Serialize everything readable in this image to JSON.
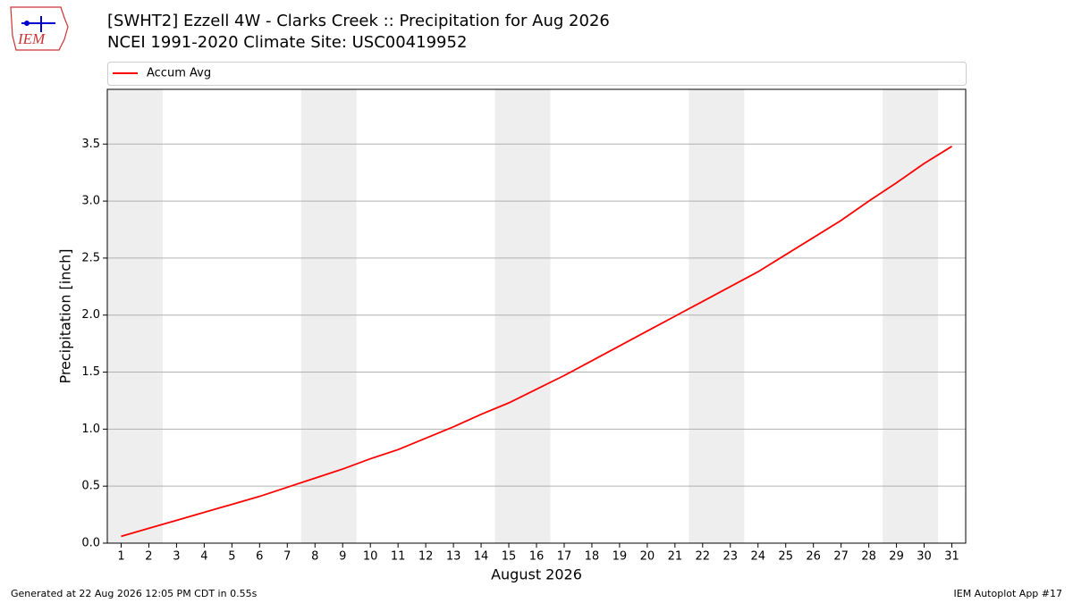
{
  "logo_text": "IEM",
  "footer": {
    "left": "Generated at 22 Aug 2026 12:05 PM CDT in 0.55s",
    "right": "IEM Autoplot App #17"
  },
  "chart_data": {
    "type": "line",
    "title": "[SWHT2] Ezzell 4W - Clarks Creek :: Precipitation for Aug 2026",
    "subtitle": "NCEI 1991-2020 Climate Site: USC00419952",
    "x_label": "August 2026",
    "y_label": "Precipitation [inch]",
    "x": [
      1,
      2,
      3,
      4,
      5,
      6,
      7,
      8,
      9,
      10,
      11,
      12,
      13,
      14,
      15,
      16,
      17,
      18,
      19,
      20,
      21,
      22,
      23,
      24,
      25,
      26,
      27,
      28,
      29,
      30,
      31
    ],
    "series": [
      {
        "name": "Accum Avg",
        "color": "#ff0000",
        "values": [
          0.06,
          0.13,
          0.2,
          0.27,
          0.34,
          0.41,
          0.49,
          0.57,
          0.65,
          0.74,
          0.82,
          0.92,
          1.02,
          1.13,
          1.23,
          1.35,
          1.47,
          1.6,
          1.73,
          1.86,
          1.99,
          2.12,
          2.25,
          2.38,
          2.53,
          2.68,
          2.83,
          3.0,
          3.16,
          3.33,
          3.48
        ]
      }
    ],
    "xlim": [
      0.5,
      31.5
    ],
    "xticks": [
      1,
      2,
      3,
      4,
      5,
      6,
      7,
      8,
      9,
      10,
      11,
      12,
      13,
      14,
      15,
      16,
      17,
      18,
      19,
      20,
      21,
      22,
      23,
      24,
      25,
      26,
      27,
      28,
      29,
      30,
      31
    ],
    "ylim": [
      0,
      3.98
    ],
    "yticks": [
      {
        "value": 0,
        "label": "0.0"
      },
      0.5,
      {
        "value": 1,
        "label": "1.0"
      },
      1.5,
      {
        "value": 2,
        "label": "2.0"
      },
      2.5,
      {
        "value": 3,
        "label": "3.0"
      },
      3.5
    ],
    "grid": true,
    "weekend_bands": [
      [
        0.5,
        2.5
      ],
      [
        7.5,
        9.5
      ],
      [
        14.5,
        16.5
      ],
      [
        21.5,
        23.5
      ],
      [
        28.5,
        30.5
      ]
    ],
    "band_color": "#eeeeee"
  }
}
